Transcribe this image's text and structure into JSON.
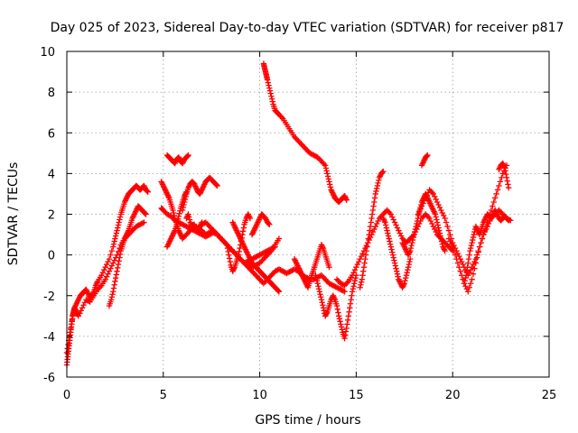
{
  "chart_data": {
    "type": "scatter",
    "title": "Day 025 of 2023, Sidereal Day-to-day VTEC variation (SDTVAR) for receiver p817",
    "xlabel": "GPS time / hours",
    "ylabel": "SDTVAR / TECUs",
    "xlim": [
      0,
      25
    ],
    "ylim": [
      -6,
      10
    ],
    "xticks": [
      0,
      5,
      10,
      15,
      20,
      25
    ],
    "yticks": [
      -6,
      -4,
      -2,
      0,
      2,
      4,
      6,
      8,
      10
    ],
    "xtick_labels": [
      "0",
      "5",
      "10",
      "15",
      "20",
      "25"
    ],
    "ytick_labels": [
      "-6",
      "-4",
      "-2",
      "0",
      "2",
      "4",
      "6",
      "8",
      "10"
    ],
    "grid": true,
    "marker": "plus",
    "color": "#ff0000",
    "series": [
      {
        "name": "s1",
        "x": [
          0.0,
          0.05,
          0.1,
          0.15,
          0.2,
          0.25,
          0.3,
          0.35,
          0.4,
          0.5,
          0.6,
          0.7,
          0.8,
          0.9,
          1.0,
          1.1,
          1.2,
          1.3,
          1.4,
          1.5,
          1.6,
          1.8,
          2.0,
          2.2,
          2.4,
          2.5,
          2.6,
          2.7,
          2.8,
          2.9,
          3.0,
          3.1,
          3.2,
          3.3,
          3.4,
          3.5,
          3.6,
          3.7,
          3.8,
          3.9,
          4.0,
          4.1,
          4.2
        ],
        "y": [
          -5.4,
          -5.0,
          -4.6,
          -4.2,
          -3.8,
          -3.4,
          -3.0,
          -2.8,
          -2.6,
          -2.4,
          -2.2,
          -2.0,
          -1.9,
          -1.8,
          -1.7,
          -1.9,
          -2.1,
          -2.0,
          -1.8,
          -1.5,
          -1.3,
          -1.0,
          -0.6,
          -0.2,
          0.4,
          0.8,
          1.2,
          1.6,
          2.0,
          2.3,
          2.6,
          2.8,
          3.0,
          3.1,
          3.2,
          3.3,
          3.4,
          3.3,
          3.2,
          3.3,
          3.4,
          3.2,
          3.1
        ]
      },
      {
        "name": "s2",
        "x": [
          0.0,
          0.1,
          0.2,
          0.3,
          0.4,
          0.5,
          0.6,
          0.8,
          1.0,
          1.2,
          1.4,
          1.6,
          1.8,
          2.0,
          2.2,
          2.4,
          2.6,
          2.8,
          3.0,
          3.2,
          3.4,
          3.6,
          3.8,
          4.0
        ],
        "y": [
          -4.8,
          -4.2,
          -3.6,
          -3.0,
          -2.6,
          -2.8,
          -3.0,
          -2.6,
          -2.2,
          -2.3,
          -2.0,
          -1.7,
          -1.5,
          -1.2,
          -0.8,
          -0.4,
          0.0,
          0.5,
          0.8,
          1.0,
          1.2,
          1.4,
          1.5,
          1.6
        ]
      },
      {
        "name": "s3",
        "x": [
          2.2,
          2.3,
          2.4,
          2.5,
          2.6,
          2.7,
          2.8,
          2.9,
          3.0,
          3.1,
          3.2,
          3.3,
          3.4,
          3.5,
          3.6,
          3.7,
          3.8,
          3.9,
          4.0,
          4.1
        ],
        "y": [
          -2.5,
          -2.2,
          -1.8,
          -1.3,
          -0.8,
          -0.3,
          0.2,
          0.5,
          0.8,
          1.0,
          1.2,
          1.5,
          1.8,
          2.0,
          2.2,
          2.4,
          2.3,
          2.2,
          2.1,
          2.0
        ]
      },
      {
        "name": "s4",
        "x": [
          4.9,
          5.0,
          5.1,
          5.2,
          5.3,
          5.4,
          5.5,
          5.6,
          5.7,
          5.8,
          5.9,
          6.0,
          6.2,
          6.4,
          6.6,
          6.8,
          7.0,
          7.2,
          7.4,
          7.6,
          7.8,
          8.0,
          8.2,
          8.4,
          8.6,
          8.8,
          9.0,
          9.2,
          9.4,
          9.6,
          9.8,
          10.0,
          10.2,
          10.4,
          10.6,
          10.8,
          11.0,
          11.2,
          11.4,
          11.6,
          11.8,
          12.0,
          12.2,
          12.4,
          12.6,
          12.8,
          13.0,
          13.2,
          13.4,
          13.6,
          13.8,
          14.0,
          14.2,
          14.4
        ],
        "y": [
          3.6,
          3.4,
          3.2,
          3.0,
          2.8,
          2.5,
          2.2,
          1.8,
          1.5,
          1.2,
          1.0,
          0.8,
          1.0,
          1.2,
          1.4,
          1.3,
          1.2,
          1.0,
          1.1,
          1.2,
          1.0,
          0.8,
          0.6,
          0.4,
          0.2,
          0.0,
          -0.2,
          -0.4,
          -0.6,
          -0.8,
          -1.0,
          -1.2,
          -1.4,
          -1.2,
          -1.0,
          -0.8,
          -0.7,
          -0.8,
          -0.9,
          -0.8,
          -0.7,
          -0.8,
          -1.0,
          -1.1,
          -1.2,
          -1.2,
          -1.1,
          -1.0,
          -1.2,
          -1.4,
          -1.5,
          -1.6,
          -1.7,
          -1.8
        ]
      },
      {
        "name": "s5",
        "x": [
          4.9,
          5.0,
          5.2,
          5.4,
          5.6,
          5.8,
          6.0,
          6.2,
          6.4,
          6.6,
          6.8,
          7.0,
          7.2,
          7.4,
          7.6,
          7.8,
          8.0,
          8.2,
          8.4,
          8.6,
          8.8,
          9.0,
          9.2,
          9.4,
          9.6,
          9.8,
          10.0,
          10.2,
          10.4,
          10.6,
          10.8,
          11.0
        ],
        "y": [
          2.3,
          2.2,
          2.0,
          1.9,
          1.7,
          1.6,
          1.5,
          1.4,
          1.3,
          1.2,
          1.1,
          1.0,
          0.9,
          1.0,
          1.1,
          1.0,
          0.8,
          0.6,
          0.4,
          0.2,
          0.0,
          -0.2,
          -0.4,
          -0.5,
          -0.6,
          -0.5,
          -0.4,
          -0.2,
          0.0,
          0.2,
          0.5,
          0.8
        ]
      },
      {
        "name": "s6",
        "x": [
          5.2,
          5.3,
          5.4,
          5.5,
          5.6,
          5.7,
          5.8,
          5.9,
          6.0,
          6.1,
          6.2,
          6.3
        ],
        "y": [
          4.9,
          4.8,
          4.7,
          4.6,
          4.5,
          4.7,
          4.8,
          4.6,
          4.5,
          4.7,
          4.8,
          4.9
        ]
      },
      {
        "name": "s7",
        "x": [
          6.0,
          6.1,
          6.2,
          6.3,
          6.4,
          6.5,
          6.6,
          6.7,
          6.8,
          6.9,
          7.0,
          7.1,
          7.2,
          7.3,
          7.4,
          7.5,
          7.6,
          7.7,
          7.8
        ],
        "y": [
          2.2,
          2.6,
          3.0,
          3.3,
          3.5,
          3.6,
          3.5,
          3.3,
          3.1,
          3.0,
          3.2,
          3.4,
          3.6,
          3.7,
          3.8,
          3.7,
          3.6,
          3.5,
          3.4
        ]
      },
      {
        "name": "s8",
        "x": [
          5.2,
          5.3,
          5.4,
          5.5,
          5.6,
          5.7,
          5.8,
          5.9,
          6.0,
          6.1,
          6.2
        ],
        "y": [
          0.4,
          0.6,
          0.8,
          1.0,
          1.2,
          1.5,
          1.9,
          2.3,
          2.6,
          2.9,
          3.1
        ]
      },
      {
        "name": "s9",
        "x": [
          6.2,
          6.3,
          6.4,
          6.5,
          6.6,
          6.7,
          6.8,
          6.9,
          7.0
        ],
        "y": [
          1.8,
          2.0,
          1.6,
          1.4,
          1.5,
          1.3,
          1.2,
          1.4,
          1.6
        ]
      },
      {
        "name": "s10",
        "x": [
          7.0,
          7.2,
          7.4,
          7.6,
          7.8,
          8.0,
          8.2,
          8.4,
          8.6,
          8.8,
          9.0,
          9.2,
          9.4,
          9.6,
          9.8,
          10.0,
          10.2,
          10.4,
          10.6,
          10.8
        ],
        "y": [
          1.5,
          1.6,
          1.4,
          1.2,
          1.0,
          0.8,
          0.6,
          0.4,
          0.2,
          0.0,
          -0.2,
          -0.4,
          -0.3,
          -0.2,
          -0.1,
          0.0,
          0.1,
          0.2,
          0.3,
          0.4
        ]
      },
      {
        "name": "s11",
        "x": [
          8.3,
          8.4,
          8.5,
          8.6,
          8.7,
          8.8,
          8.9,
          9.0,
          9.1,
          9.2,
          9.3,
          9.4,
          9.5
        ],
        "y": [
          0.5,
          0.0,
          -0.5,
          -0.8,
          -0.6,
          -0.3,
          0.0,
          0.5,
          1.0,
          1.5,
          1.8,
          2.0,
          1.8
        ]
      },
      {
        "name": "s12",
        "x": [
          8.6,
          8.7,
          8.8,
          8.9,
          9.0,
          9.1,
          9.2,
          9.3,
          9.4,
          9.5,
          9.6,
          9.7,
          9.8,
          9.9,
          10.0,
          10.1,
          10.2,
          10.3,
          10.4,
          10.5,
          10.6,
          10.7,
          10.8,
          10.9,
          11.0
        ],
        "y": [
          1.6,
          1.4,
          1.2,
          1.0,
          0.8,
          0.6,
          0.4,
          0.2,
          0.0,
          -0.2,
          -0.4,
          -0.5,
          -0.6,
          -0.7,
          -0.8,
          -0.9,
          -1.0,
          -1.1,
          -1.2,
          -1.3,
          -1.4,
          -1.5,
          -1.6,
          -1.7,
          -1.8
        ]
      },
      {
        "name": "s13",
        "x": [
          9.6,
          9.7,
          9.8,
          9.9,
          10.0,
          10.1,
          10.2,
          10.3,
          10.4,
          10.5
        ],
        "y": [
          1.0,
          1.2,
          1.4,
          1.6,
          1.8,
          2.0,
          1.9,
          1.8,
          1.6,
          1.5
        ]
      },
      {
        "name": "s14",
        "x": [
          10.2,
          10.25,
          10.3,
          10.35,
          10.4,
          10.5,
          10.6,
          10.7,
          10.8,
          10.9,
          11.0,
          11.2,
          11.4,
          11.6,
          11.8,
          12.0,
          12.2,
          12.4,
          12.6,
          12.8,
          13.0,
          13.2,
          13.4,
          13.5,
          13.6,
          13.7,
          13.8,
          13.9,
          14.0,
          14.1,
          14.2,
          14.3,
          14.4,
          14.5
        ],
        "y": [
          9.4,
          9.2,
          9.0,
          8.8,
          8.6,
          8.2,
          7.8,
          7.4,
          7.1,
          7.0,
          6.9,
          6.7,
          6.4,
          6.1,
          5.8,
          5.6,
          5.4,
          5.2,
          5.0,
          4.9,
          4.8,
          4.6,
          4.4,
          4.0,
          3.6,
          3.2,
          3.0,
          2.8,
          2.7,
          2.6,
          2.7,
          2.8,
          2.9,
          2.7
        ]
      },
      {
        "name": "s15",
        "x": [
          11.8,
          11.9,
          12.0,
          12.1,
          12.2,
          12.3,
          12.4,
          12.5,
          12.6,
          12.7,
          12.8,
          12.9,
          13.0,
          13.1,
          13.2,
          13.3,
          13.4,
          13.5,
          13.6
        ],
        "y": [
          -0.2,
          -0.4,
          -0.6,
          -0.8,
          -1.0,
          -1.2,
          -1.4,
          -1.6,
          -1.3,
          -1.0,
          -0.7,
          -0.4,
          -0.1,
          0.2,
          0.5,
          0.3,
          0.0,
          -0.3,
          -0.6
        ]
      },
      {
        "name": "s16",
        "x": [
          12.9,
          13.0,
          13.1,
          13.2,
          13.3,
          13.4,
          13.5,
          13.6,
          13.7,
          13.8,
          13.9,
          14.0,
          14.1,
          14.2,
          14.3,
          14.4,
          14.5,
          14.6,
          14.7,
          14.8,
          14.9,
          15.0
        ],
        "y": [
          -1.0,
          -1.4,
          -1.8,
          -2.2,
          -2.6,
          -3.0,
          -2.8,
          -2.5,
          -2.2,
          -2.0,
          -2.2,
          -2.5,
          -3.0,
          -3.4,
          -3.8,
          -4.1,
          -3.6,
          -3.0,
          -2.4,
          -1.8,
          -1.4,
          -1.0
        ]
      },
      {
        "name": "s17",
        "x": [
          14.0,
          14.2,
          14.4,
          14.6,
          14.8,
          15.0,
          15.2,
          15.4,
          15.6,
          15.8,
          16.0,
          16.2,
          16.4,
          16.6,
          16.8,
          17.0,
          17.2,
          17.4,
          17.6,
          17.8,
          18.0,
          18.2,
          18.4,
          18.6,
          18.8,
          19.0,
          19.2,
          19.4,
          19.6,
          19.8,
          20.0
        ],
        "y": [
          -1.2,
          -1.4,
          -1.5,
          -1.3,
          -1.0,
          -0.6,
          -0.2,
          0.2,
          0.6,
          1.0,
          1.4,
          1.8,
          2.0,
          2.2,
          2.0,
          1.6,
          1.2,
          0.8,
          0.6,
          0.8,
          1.0,
          1.4,
          1.8,
          2.0,
          1.8,
          1.4,
          1.0,
          0.8,
          0.6,
          0.4,
          0.2
        ]
      },
      {
        "name": "s18",
        "x": [
          15.2,
          15.3,
          15.4,
          15.5,
          15.6,
          15.7,
          15.8,
          15.9,
          16.0,
          16.1,
          16.2,
          16.3,
          16.4
        ],
        "y": [
          -1.6,
          -1.2,
          -0.6,
          0.0,
          0.6,
          1.2,
          1.8,
          2.4,
          3.0,
          3.4,
          3.8,
          4.0,
          4.1
        ]
      },
      {
        "name": "s19",
        "x": [
          16.4,
          16.5,
          16.6,
          16.7,
          16.8,
          16.9,
          17.0,
          17.1,
          17.2,
          17.3,
          17.4,
          17.5,
          17.6,
          17.7,
          17.8
        ],
        "y": [
          1.8,
          1.6,
          1.2,
          0.8,
          0.4,
          0.0,
          -0.4,
          -0.8,
          -1.2,
          -1.4,
          -1.6,
          -1.4,
          -1.0,
          -0.6,
          -0.2
        ]
      },
      {
        "name": "s20",
        "x": [
          17.4,
          17.5,
          17.6,
          17.7,
          17.8,
          17.9,
          18.0,
          18.1,
          18.2,
          18.3,
          18.4,
          18.5,
          18.6,
          18.7,
          18.8,
          18.9,
          19.0,
          19.1,
          19.2,
          19.3,
          19.4,
          19.5,
          19.6
        ],
        "y": [
          0.6,
          0.4,
          0.2,
          0.0,
          0.2,
          0.6,
          1.0,
          1.4,
          1.8,
          2.2,
          2.6,
          2.8,
          3.0,
          2.8,
          2.6,
          2.4,
          2.2,
          2.0,
          1.6,
          1.2,
          0.8,
          0.4,
          0.2
        ]
      },
      {
        "name": "s21",
        "x": [
          18.4,
          18.5,
          18.6,
          18.7
        ],
        "y": [
          4.4,
          4.6,
          4.8,
          4.9
        ]
      },
      {
        "name": "s22",
        "x": [
          18.2,
          18.4,
          18.6,
          18.8,
          19.0,
          19.2,
          19.4,
          19.6,
          19.8,
          20.0,
          20.2,
          20.4,
          20.6,
          20.8,
          21.0,
          21.2,
          21.4,
          21.6,
          21.8,
          22.0,
          22.2,
          22.4,
          22.6,
          22.8
        ],
        "y": [
          2.0,
          2.4,
          2.8,
          3.2,
          3.0,
          2.6,
          2.2,
          1.8,
          1.2,
          0.6,
          0.2,
          -0.2,
          -0.6,
          -1.0,
          -0.6,
          -0.2,
          0.4,
          1.0,
          1.6,
          2.2,
          2.8,
          3.4,
          4.0,
          4.4
        ]
      },
      {
        "name": "s23",
        "x": [
          19.8,
          20.0,
          20.2,
          20.4,
          20.6,
          20.8,
          21.0,
          21.2,
          21.4,
          21.6,
          21.8,
          22.0,
          22.2,
          22.4,
          22.6,
          22.8,
          23.0
        ],
        "y": [
          0.8,
          0.4,
          -0.2,
          -0.8,
          -1.4,
          -1.8,
          -1.2,
          -0.4,
          0.4,
          1.0,
          1.4,
          1.8,
          2.0,
          2.2,
          2.0,
          1.8,
          1.7
        ]
      },
      {
        "name": "s24",
        "x": [
          20.6,
          20.7,
          20.8,
          20.9,
          21.0,
          21.1,
          21.2,
          21.3,
          21.4,
          21.5,
          21.6,
          21.7,
          21.8,
          21.9,
          22.0,
          22.1,
          22.2,
          22.3,
          22.4,
          22.5,
          22.6,
          22.7,
          22.8,
          22.9
        ],
        "y": [
          -1.4,
          -1.0,
          -0.4,
          0.2,
          0.6,
          1.0,
          1.4,
          1.2,
          1.0,
          1.3,
          1.6,
          1.8,
          2.0,
          1.9,
          1.8,
          2.0,
          2.2,
          2.0,
          1.8,
          1.7,
          1.8,
          1.9,
          1.8,
          1.7
        ]
      },
      {
        "name": "s25",
        "x": [
          22.4,
          22.5,
          22.6,
          22.7,
          22.8,
          22.9
        ],
        "y": [
          4.2,
          4.4,
          4.5,
          4.3,
          3.8,
          3.3
        ]
      }
    ]
  }
}
